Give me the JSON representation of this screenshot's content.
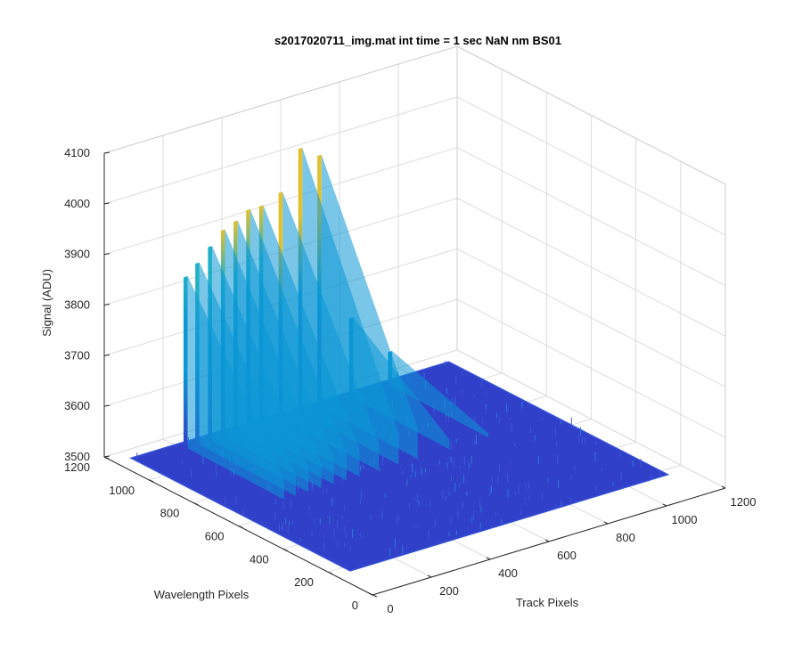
{
  "chart_data": {
    "type": "surface3d",
    "title": "s2017020711_img.mat int time = 1 sec  NaN nm BS01",
    "xlabel": "Track Pixels",
    "ylabel": "Wavelength Pixels",
    "zlabel": "Signal (ADU)",
    "xlim": [
      0,
      1200
    ],
    "ylim": [
      0,
      1200
    ],
    "zlim": [
      3500,
      4100
    ],
    "xticks": [
      "0",
      "200",
      "400",
      "600",
      "800",
      "1000",
      "1200"
    ],
    "yticks": [
      "0",
      "200",
      "400",
      "600",
      "800",
      "1000",
      "1200"
    ],
    "zticks": [
      "3500",
      "3600",
      "3700",
      "3800",
      "3900",
      "4000",
      "4100"
    ],
    "grid": true,
    "colormap": "parula",
    "colors": {
      "low": "#3040c8",
      "mid": "#0b98d6",
      "high": "#e0c030"
    },
    "baseline_signal": 3525,
    "floor_extent": {
      "x": [
        0,
        1080
      ],
      "y": [
        100,
        1080
      ]
    },
    "peaks": [
      {
        "track_center": 155,
        "signal_max": 3865
      },
      {
        "track_center": 195,
        "signal_max": 3885
      },
      {
        "track_center": 238,
        "signal_max": 3910
      },
      {
        "track_center": 282,
        "signal_max": 3935
      },
      {
        "track_center": 325,
        "signal_max": 3945
      },
      {
        "track_center": 368,
        "signal_max": 3960
      },
      {
        "track_center": 412,
        "signal_max": 3960
      },
      {
        "track_center": 478,
        "signal_max": 3975
      },
      {
        "track_center": 545,
        "signal_max": 4050
      },
      {
        "track_center": 610,
        "signal_max": 4025
      },
      {
        "track_center": 718,
        "signal_max": 3685
      },
      {
        "track_center": 850,
        "signal_max": 3595
      }
    ]
  }
}
